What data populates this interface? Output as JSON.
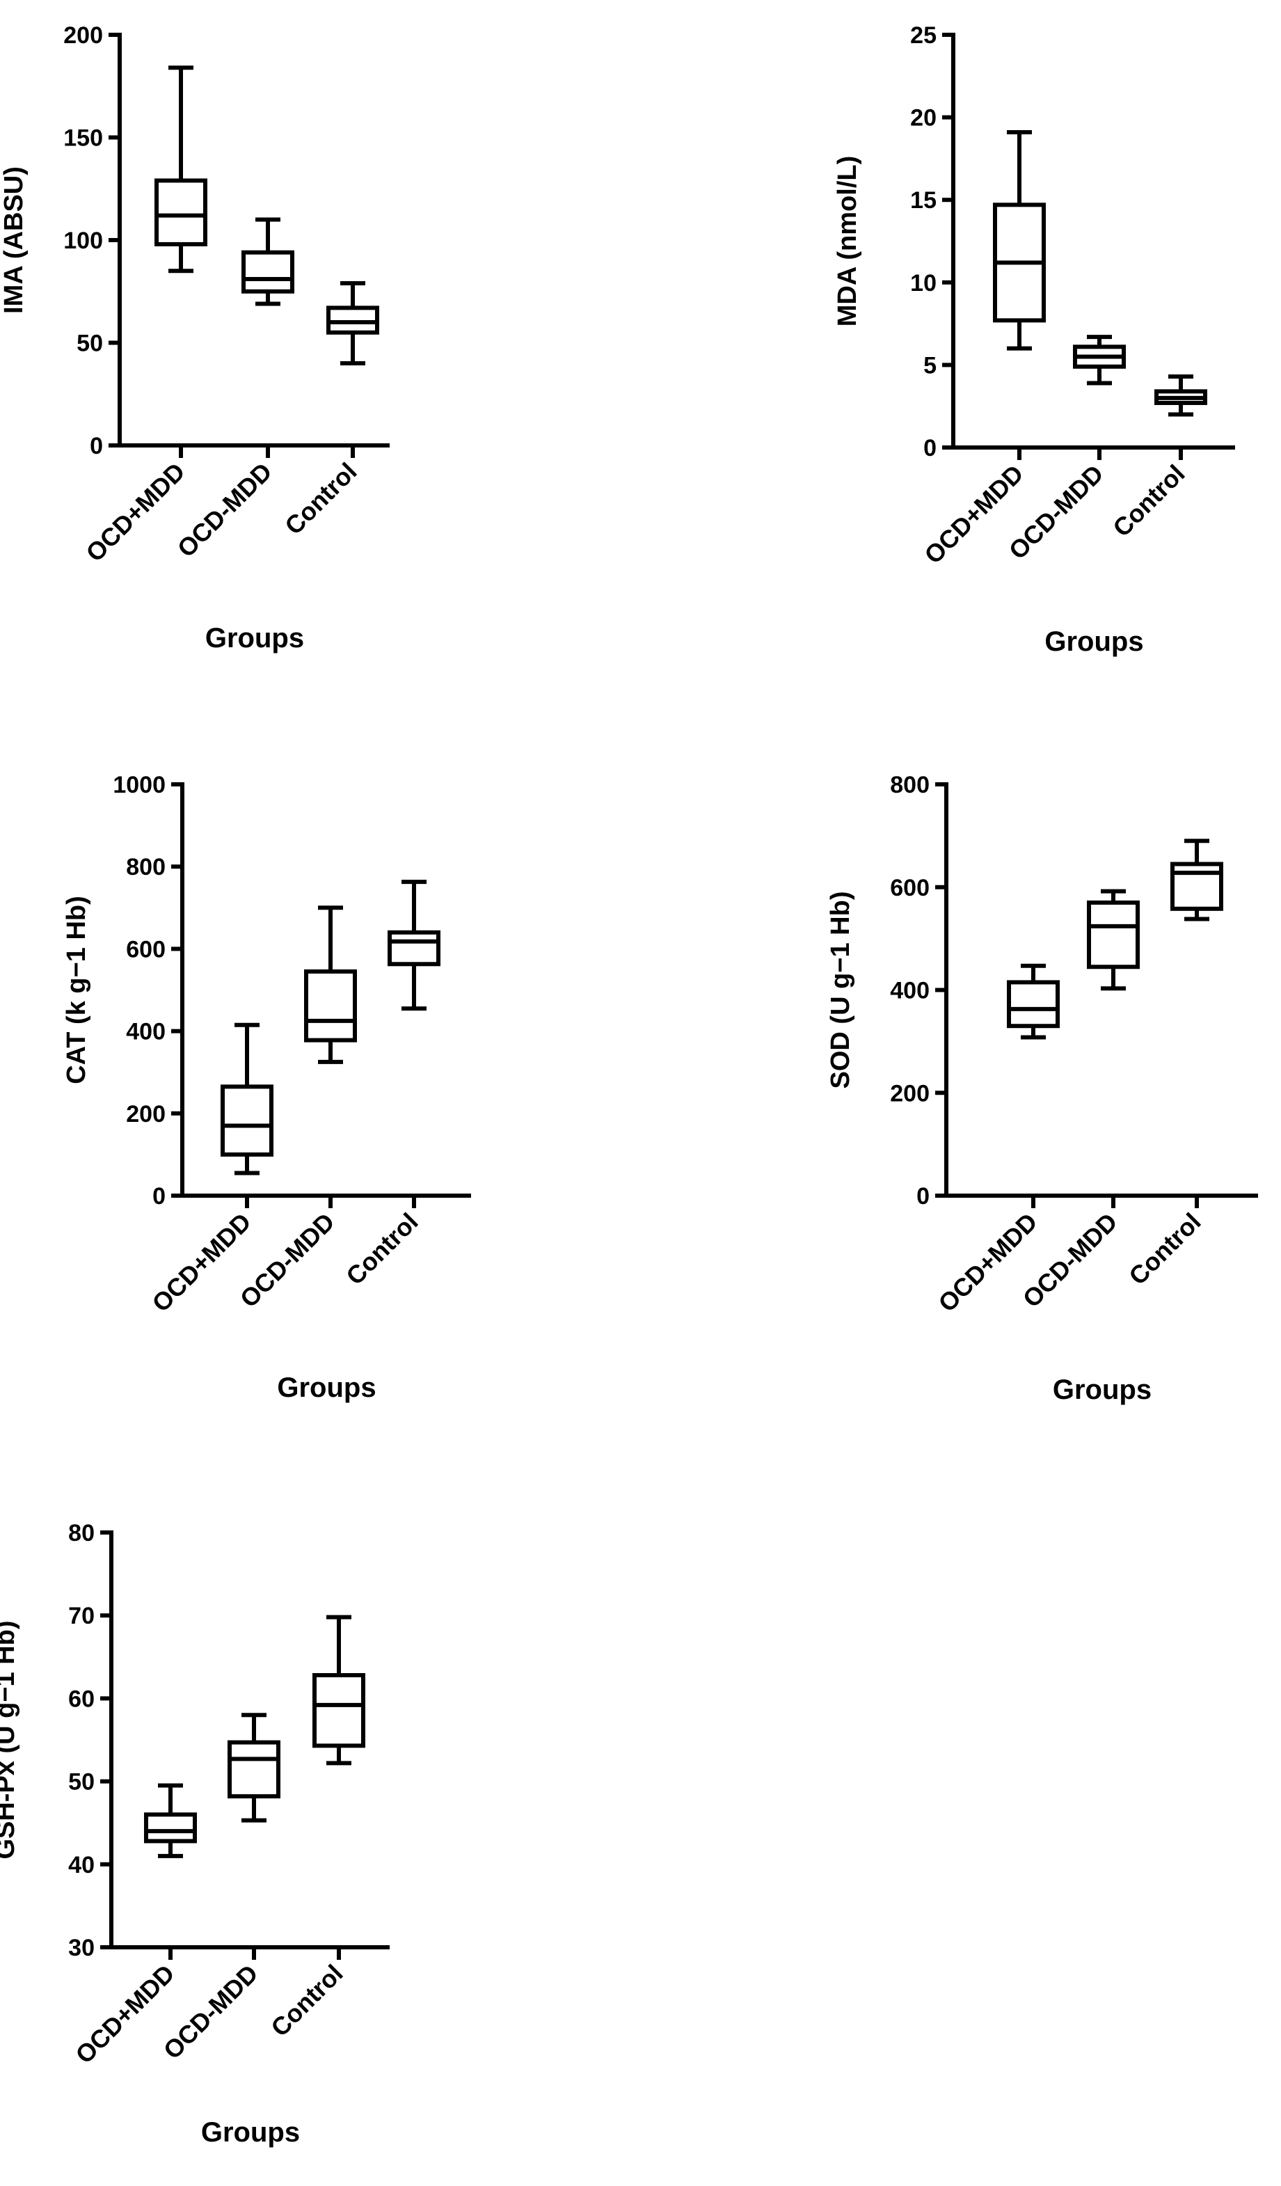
{
  "chart_data": [
    {
      "type": "box",
      "ylabel": "IMA (ABSU)",
      "xlabel": "Groups",
      "categories": [
        "OCD+MDD",
        "OCD-MDD",
        "Control"
      ],
      "ylim": [
        0,
        200
      ],
      "yticks": [
        0,
        50,
        100,
        150,
        200
      ],
      "boxes": [
        {
          "group": "OCD+MDD",
          "min": 85,
          "q1": 98,
          "median": 112,
          "q3": 129,
          "max": 184
        },
        {
          "group": "OCD-MDD",
          "min": 69,
          "q1": 75,
          "median": 81,
          "q3": 94,
          "max": 110
        },
        {
          "group": "Control",
          "min": 40,
          "q1": 55,
          "median": 60,
          "q3": 67,
          "max": 79
        }
      ]
    },
    {
      "type": "box",
      "ylabel": "MDA (nmol/L)",
      "xlabel": "Groups",
      "categories": [
        "OCD+MDD",
        "OCD-MDD",
        "Control"
      ],
      "ylim": [
        0,
        25
      ],
      "yticks": [
        0,
        5,
        10,
        15,
        20,
        25
      ],
      "boxes": [
        {
          "group": "OCD+MDD",
          "min": 6,
          "q1": 7.7,
          "median": 11.2,
          "q3": 14.7,
          "max": 19.1
        },
        {
          "group": "OCD-MDD",
          "min": 3.9,
          "q1": 4.9,
          "median": 5.5,
          "q3": 6.1,
          "max": 6.7
        },
        {
          "group": "Control",
          "min": 2,
          "q1": 2.7,
          "median": 3.0,
          "q3": 3.4,
          "max": 4.3
        }
      ]
    },
    {
      "type": "box",
      "ylabel": "CAT (k g−1 Hb)",
      "xlabel": "Groups",
      "categories": [
        "OCD+MDD",
        "OCD-MDD",
        "Control"
      ],
      "ylim": [
        0,
        1000
      ],
      "yticks": [
        0,
        200,
        400,
        600,
        800,
        1000
      ],
      "boxes": [
        {
          "group": "OCD+MDD",
          "min": 55,
          "q1": 100,
          "median": 170,
          "q3": 265,
          "max": 415
        },
        {
          "group": "OCD-MDD",
          "min": 325,
          "q1": 378,
          "median": 425,
          "q3": 545,
          "max": 700
        },
        {
          "group": "Control",
          "min": 455,
          "q1": 563,
          "median": 618,
          "q3": 640,
          "max": 763
        }
      ]
    },
    {
      "type": "box",
      "ylabel": "SOD (U g−1 Hb)",
      "xlabel": "Groups",
      "categories": [
        "OCD+MDD",
        "OCD-MDD",
        "Control"
      ],
      "ylim": [
        0,
        800
      ],
      "yticks": [
        0,
        200,
        400,
        600,
        800
      ],
      "boxes": [
        {
          "group": "OCD+MDD",
          "min": 308,
          "q1": 330,
          "median": 363,
          "q3": 415,
          "max": 447
        },
        {
          "group": "OCD-MDD",
          "min": 403,
          "q1": 445,
          "median": 524,
          "q3": 570,
          "max": 592
        },
        {
          "group": "Control",
          "min": 538,
          "q1": 558,
          "median": 628,
          "q3": 645,
          "max": 690
        }
      ]
    },
    {
      "type": "box",
      "ylabel": "GSH-Px (U g−1 Hb)",
      "xlabel": "Groups",
      "categories": [
        "OCD+MDD",
        "OCD-MDD",
        "Control"
      ],
      "ylim": [
        30,
        80
      ],
      "yticks": [
        30,
        40,
        50,
        60,
        70,
        80
      ],
      "boxes": [
        {
          "group": "OCD+MDD",
          "min": 41,
          "q1": 42.8,
          "median": 44,
          "q3": 46,
          "max": 49.5
        },
        {
          "group": "OCD-MDD",
          "min": 45.3,
          "q1": 48.2,
          "median": 52.7,
          "q3": 54.7,
          "max": 58
        },
        {
          "group": "Control",
          "min": 52.2,
          "q1": 54.3,
          "median": 59.2,
          "q3": 62.8,
          "max": 69.8
        }
      ]
    }
  ]
}
